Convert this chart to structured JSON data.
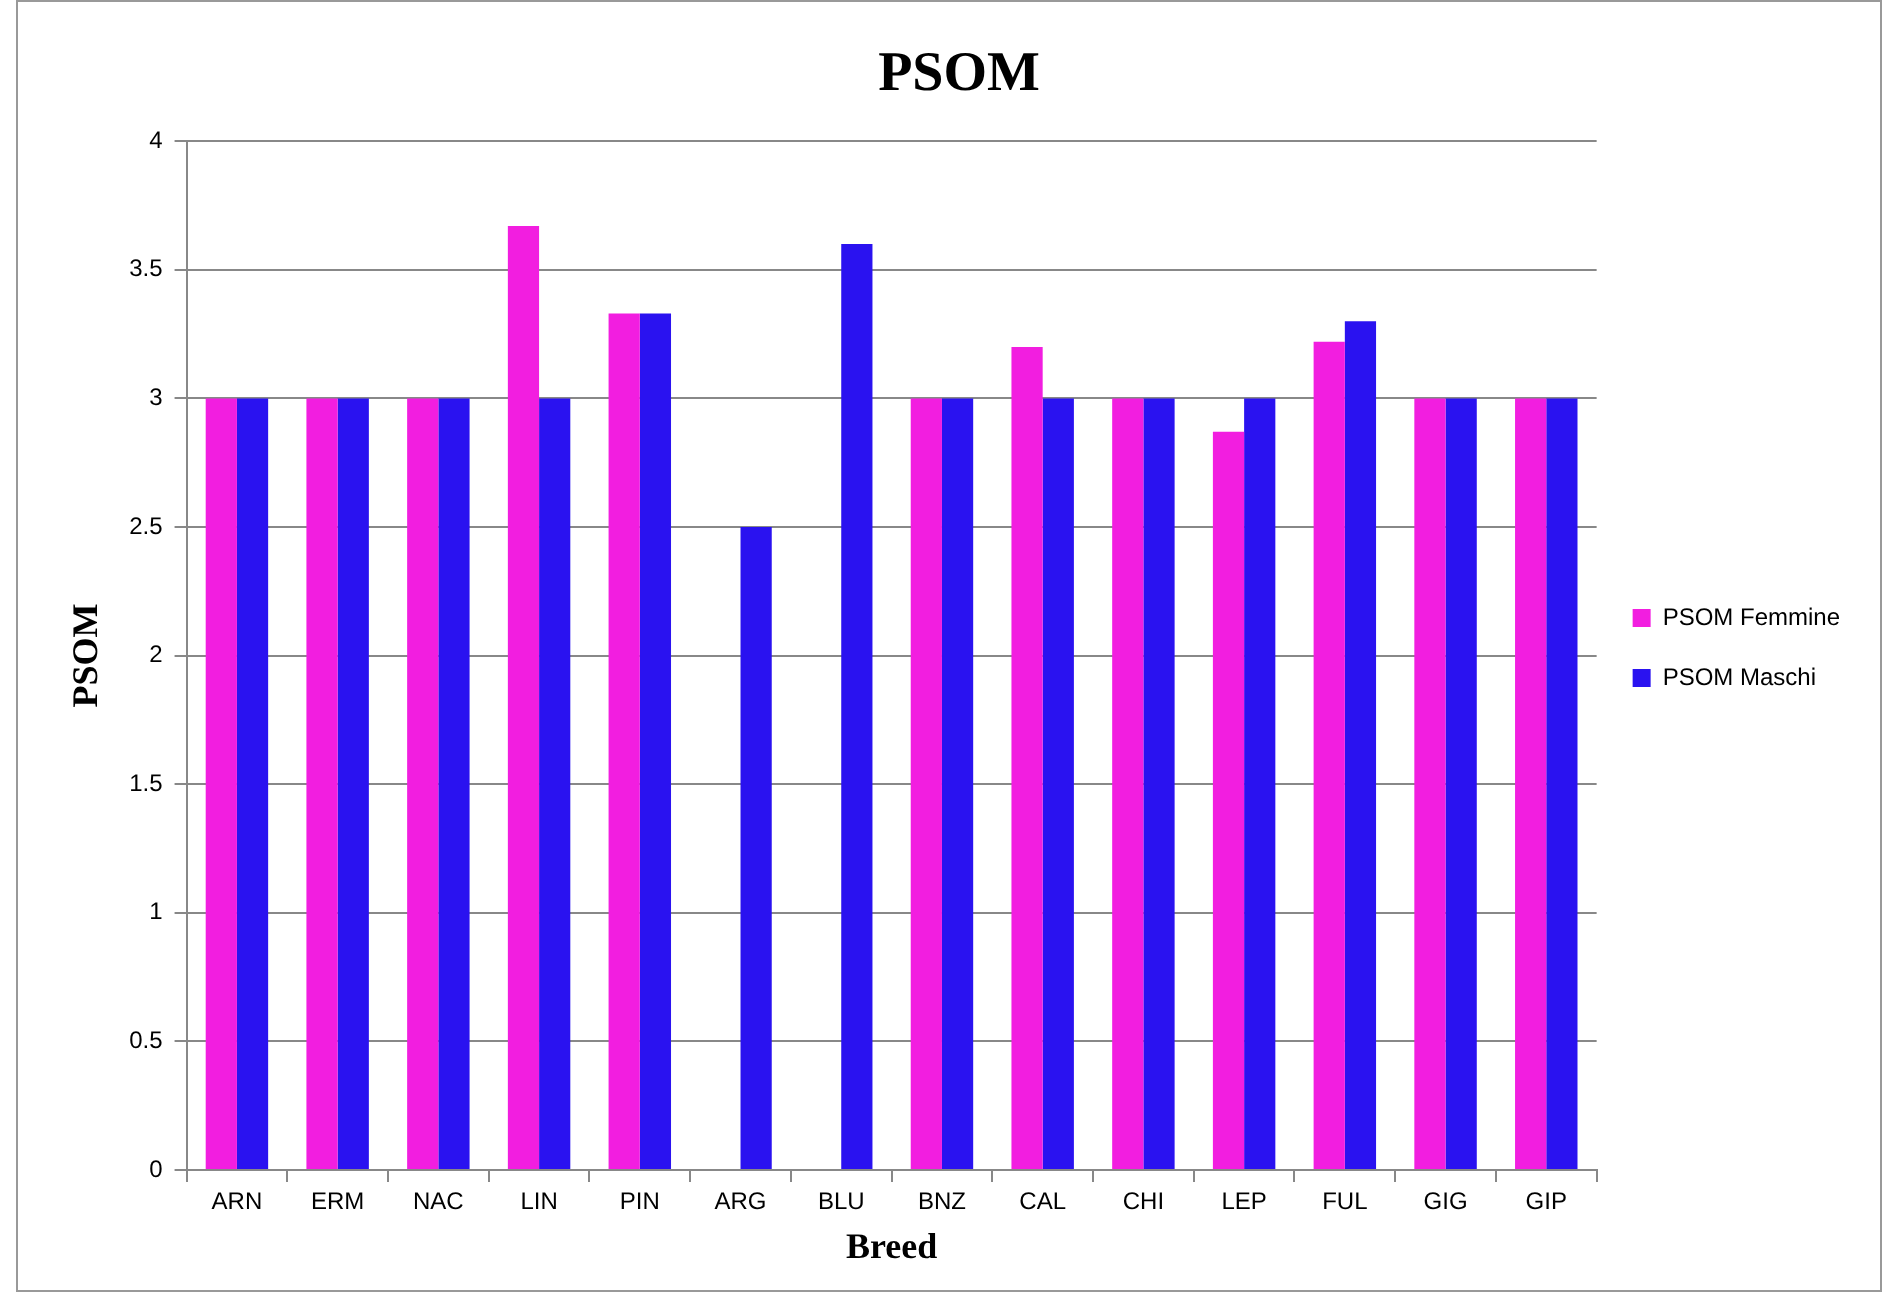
{
  "chart_data": {
    "type": "bar",
    "title": "PSOM",
    "xlabel": "Breed",
    "ylabel": "PSOM",
    "categories": [
      "ARN",
      "ERM",
      "NAC",
      "LIN",
      "PIN",
      "ARG",
      "BLU",
      "BNZ",
      "CAL",
      "CHI",
      "LEP",
      "FUL",
      "GIG",
      "GIP"
    ],
    "series": [
      {
        "name": "PSOM Femmine",
        "color": "#f21ee0",
        "values": [
          3,
          3,
          3,
          3.67,
          3.33,
          null,
          null,
          3,
          3.2,
          3,
          2.87,
          3.22,
          3,
          3
        ]
      },
      {
        "name": "PSOM Maschi",
        "color": "#2a12f0",
        "values": [
          3,
          3,
          3,
          3,
          3.33,
          2.5,
          3.6,
          3,
          3,
          3,
          3,
          3.3,
          3,
          3
        ]
      }
    ],
    "ylim": [
      0,
      4
    ],
    "yticks": [
      0,
      0.5,
      1,
      1.5,
      2,
      2.5,
      3,
      3.5,
      4
    ],
    "grid": "y",
    "legend": "right"
  }
}
